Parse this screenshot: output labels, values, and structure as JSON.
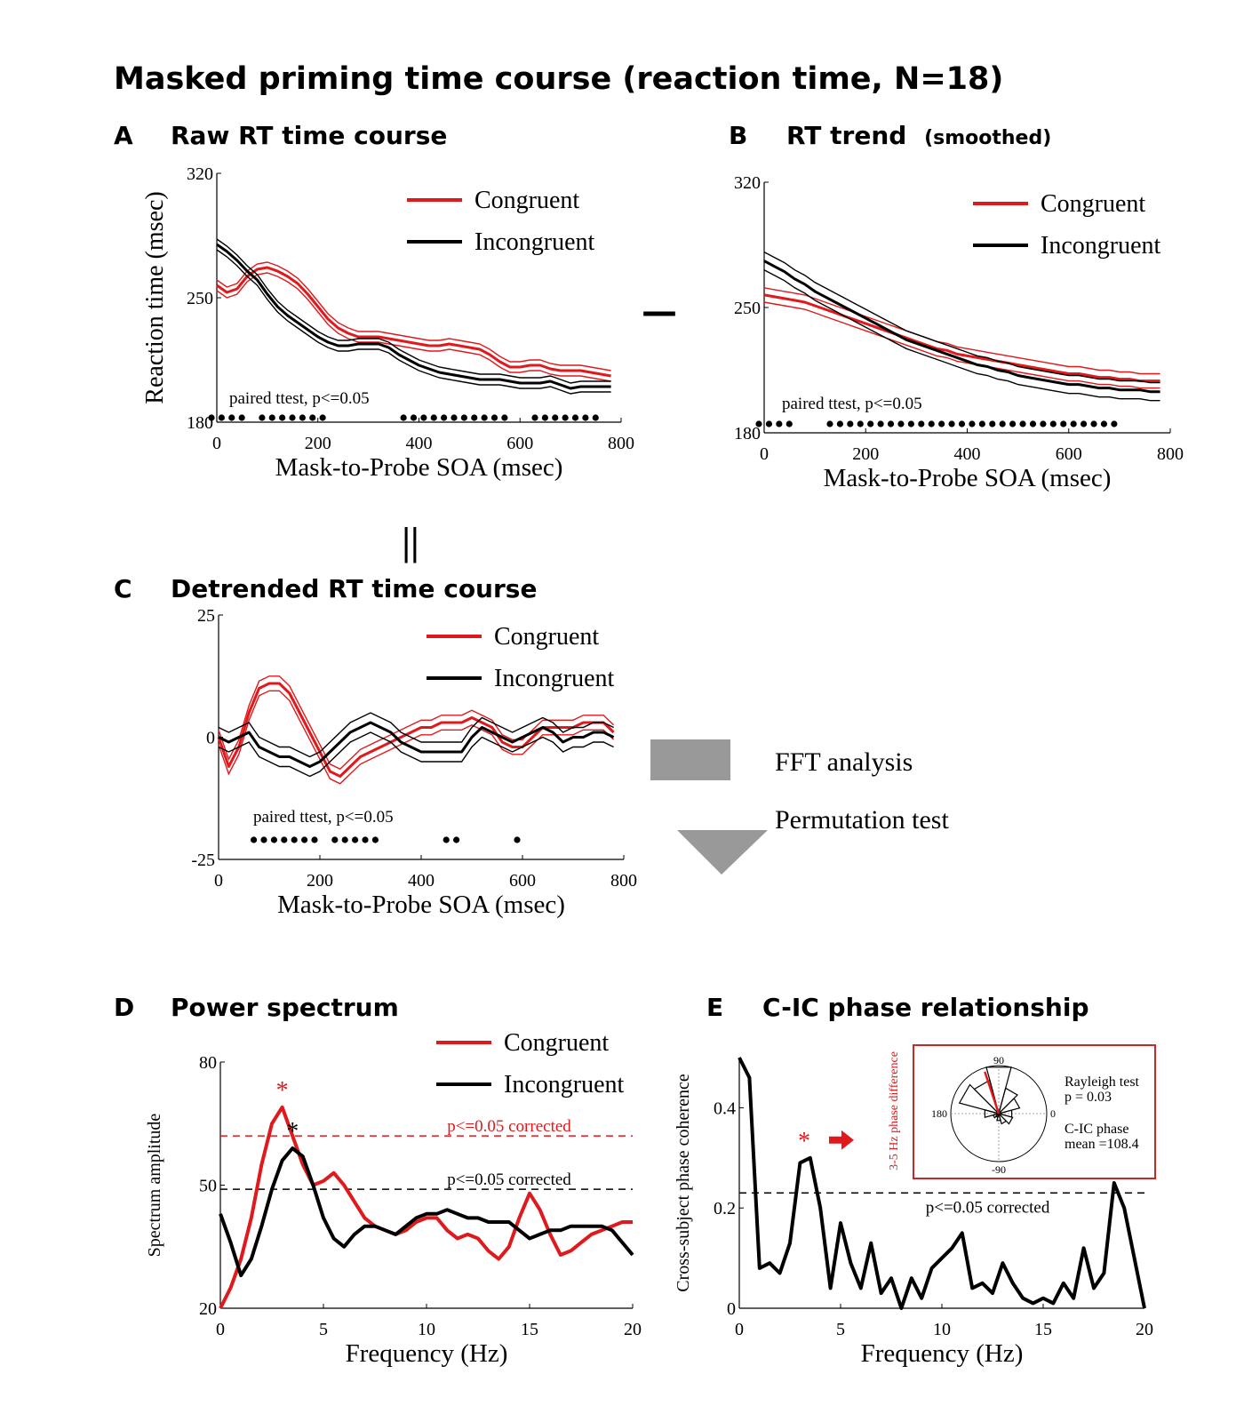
{
  "title": "Masked priming time course (reaction time, N=18)",
  "colors": {
    "congruent": "#e0191c",
    "incongruent": "#000000",
    "arrow": "#999999",
    "inset_border": "#c62828"
  },
  "operators": {
    "minus": "—",
    "equals": "||"
  },
  "fft_labels": {
    "line1": "FFT analysis",
    "line2": "Permutation test"
  },
  "chart_data": [
    {
      "id": "A",
      "panel_letter": "A",
      "title": "Raw RT time course",
      "title_suffix": "",
      "type": "line",
      "xlabel": "Mask-to-Probe SOA (msec)",
      "ylabel": "Reaction time (msec)",
      "xlim": [
        0,
        800
      ],
      "ylim": [
        180,
        320
      ],
      "xticks": [
        0,
        200,
        400,
        600,
        800
      ],
      "yticks": [
        180,
        250,
        320
      ],
      "legend": {
        "position": "top-right",
        "entries": [
          "Congruent",
          "Incongruent"
        ]
      },
      "annotation": "paired ttest, p<=0.05",
      "x": [
        0,
        20,
        40,
        60,
        80,
        100,
        120,
        140,
        160,
        180,
        200,
        220,
        240,
        260,
        280,
        300,
        320,
        340,
        360,
        380,
        400,
        420,
        440,
        460,
        480,
        500,
        520,
        540,
        560,
        580,
        600,
        620,
        640,
        660,
        680,
        700,
        720,
        740,
        760,
        780
      ],
      "series": [
        {
          "name": "Congruent",
          "values": [
            257,
            253,
            255,
            262,
            266,
            267,
            265,
            262,
            258,
            252,
            245,
            238,
            233,
            230,
            228,
            228,
            228,
            227,
            226,
            225,
            224,
            223,
            223,
            224,
            223,
            222,
            221,
            218,
            214,
            211,
            211,
            212,
            212,
            210,
            209,
            209,
            209,
            208,
            207,
            206
          ],
          "sem": 3
        },
        {
          "name": "Incongruent",
          "values": [
            280,
            276,
            271,
            265,
            260,
            252,
            245,
            240,
            236,
            232,
            228,
            225,
            223,
            223,
            224,
            224,
            224,
            222,
            218,
            215,
            212,
            210,
            208,
            207,
            206,
            205,
            204,
            204,
            204,
            203,
            202,
            202,
            202,
            203,
            201,
            199,
            200,
            200,
            200,
            200
          ],
          "sem": 3
        }
      ],
      "significant_x": [
        0,
        20,
        40,
        60,
        100,
        120,
        140,
        160,
        180,
        200,
        220,
        380,
        400,
        420,
        440,
        460,
        480,
        500,
        520,
        540,
        560,
        580,
        640,
        660,
        680,
        700,
        720,
        740,
        760
      ]
    },
    {
      "id": "B",
      "panel_letter": "B",
      "title": "RT trend",
      "title_suffix": "(smoothed)",
      "type": "line",
      "xlabel": "Mask-to-Probe SOA (msec)",
      "ylabel": "",
      "xlim": [
        0,
        800
      ],
      "ylim": [
        180,
        320
      ],
      "xticks": [
        0,
        200,
        400,
        600,
        800
      ],
      "yticks": [
        180,
        250,
        320
      ],
      "legend": {
        "position": "top-right",
        "entries": [
          "Congruent",
          "Incongruent"
        ]
      },
      "annotation": "paired ttest, p<=0.05",
      "x": [
        0,
        20,
        40,
        60,
        80,
        100,
        120,
        140,
        160,
        180,
        200,
        220,
        240,
        260,
        280,
        300,
        320,
        340,
        360,
        380,
        400,
        420,
        440,
        460,
        480,
        500,
        520,
        540,
        560,
        580,
        600,
        620,
        640,
        660,
        680,
        700,
        720,
        740,
        760,
        780
      ],
      "series": [
        {
          "name": "Congruent",
          "values": [
            257,
            256,
            255,
            254,
            253,
            251,
            249,
            247,
            245,
            243,
            241,
            239,
            237,
            235,
            233,
            231,
            229,
            227,
            226,
            224,
            223,
            222,
            221,
            220,
            219,
            218,
            217,
            216,
            215,
            214,
            213,
            213,
            212,
            211,
            211,
            210,
            210,
            209,
            209,
            209
          ],
          "sem": 4
        },
        {
          "name": "Incongruent",
          "values": [
            276,
            273,
            270,
            266,
            263,
            259,
            256,
            253,
            250,
            247,
            244,
            241,
            238,
            235,
            232,
            230,
            228,
            226,
            224,
            222,
            220,
            218,
            217,
            215,
            214,
            212,
            211,
            210,
            209,
            208,
            207,
            207,
            206,
            205,
            205,
            204,
            204,
            204,
            203,
            203
          ],
          "sem": 5
        }
      ],
      "significant_x": [
        0,
        20,
        40,
        60,
        140,
        160,
        180,
        200,
        220,
        240,
        260,
        280,
        300,
        320,
        340,
        360,
        380,
        400,
        420,
        440,
        460,
        480,
        500,
        520,
        540,
        560,
        580,
        600,
        620,
        640,
        660,
        680,
        700
      ]
    },
    {
      "id": "C",
      "panel_letter": "C",
      "title": "Detrended RT time course",
      "title_suffix": "",
      "type": "line",
      "xlabel": "Mask-to-Probe SOA (msec)",
      "ylabel": "",
      "xlim": [
        0,
        800
      ],
      "ylim": [
        -25,
        25
      ],
      "xticks": [
        0,
        200,
        400,
        600,
        800
      ],
      "yticks": [
        -25,
        0,
        25
      ],
      "legend": {
        "position": "top-right",
        "entries": [
          "Congruent",
          "Incongruent"
        ]
      },
      "annotation": "paired ttest, p<=0.05",
      "x": [
        0,
        20,
        40,
        60,
        80,
        100,
        120,
        140,
        160,
        180,
        200,
        220,
        240,
        260,
        280,
        300,
        320,
        340,
        360,
        380,
        400,
        420,
        440,
        460,
        480,
        500,
        520,
        540,
        560,
        580,
        600,
        620,
        640,
        660,
        680,
        700,
        720,
        740,
        760,
        780
      ],
      "series": [
        {
          "name": "Congruent",
          "values": [
            0,
            -6,
            -2,
            5,
            10,
            11,
            11,
            9,
            5,
            1,
            -3,
            -7,
            -8,
            -6,
            -4,
            -3,
            -2,
            -1,
            0,
            1,
            2,
            2,
            3,
            3,
            3,
            4,
            3,
            2,
            -1,
            -2,
            -2,
            0,
            2,
            2,
            2,
            2,
            3,
            3,
            3,
            1
          ],
          "sem": 1.5
        },
        {
          "name": "Incongruent",
          "values": [
            0,
            -1,
            0,
            1,
            -2,
            -3,
            -4,
            -4,
            -5,
            -6,
            -5,
            -3,
            -1,
            1,
            2,
            3,
            2,
            1,
            -1,
            -2,
            -3,
            -3,
            -3,
            -3,
            -3,
            0,
            2,
            1,
            0,
            -1,
            0,
            1,
            2,
            1,
            -1,
            0,
            0,
            1,
            1,
            0
          ],
          "sem": 2
        }
      ],
      "significant_x": [
        80,
        100,
        120,
        140,
        160,
        180,
        200,
        240,
        260,
        280,
        300,
        320,
        460,
        480,
        600
      ]
    },
    {
      "id": "D",
      "panel_letter": "D",
      "title": "Power spectrum",
      "title_suffix": "",
      "type": "line",
      "xlabel": "Frequency (Hz)",
      "ylabel": "Spectrum amplitude",
      "xlim": [
        0,
        20
      ],
      "ylim": [
        20,
        80
      ],
      "xticks": [
        0,
        5,
        10,
        15,
        20
      ],
      "yticks": [
        20,
        50,
        80
      ],
      "legend": {
        "position": "top-right",
        "entries": [
          "Congruent",
          "Incongruent"
        ]
      },
      "x": [
        0,
        0.5,
        1,
        1.5,
        2,
        2.5,
        3,
        3.5,
        4,
        4.5,
        5,
        5.5,
        6,
        6.5,
        7,
        7.5,
        8,
        8.5,
        9,
        9.5,
        10,
        10.5,
        11,
        11.5,
        12,
        12.5,
        13,
        13.5,
        14,
        14.5,
        15,
        15.5,
        16,
        16.5,
        17,
        17.5,
        18,
        18.5,
        19,
        19.5,
        20
      ],
      "series": [
        {
          "name": "Congruent",
          "values": [
            20,
            25,
            32,
            42,
            55,
            65,
            69,
            62,
            55,
            50,
            51,
            53,
            50,
            46,
            42,
            40,
            39,
            38,
            39,
            41,
            42,
            42,
            39,
            37,
            38,
            37,
            34,
            32,
            35,
            42,
            48,
            44,
            38,
            33,
            34,
            36,
            38,
            39,
            40,
            41,
            41
          ]
        },
        {
          "name": "Incongruent",
          "values": [
            43,
            36,
            28,
            32,
            40,
            49,
            56,
            59,
            57,
            50,
            42,
            37,
            35,
            38,
            40,
            40,
            39,
            38,
            40,
            42,
            43,
            43,
            44,
            43,
            42,
            42,
            41,
            41,
            41,
            39,
            37,
            38,
            39,
            39,
            40,
            40,
            40,
            40,
            39,
            36,
            33
          ]
        }
      ],
      "thresholds": [
        {
          "series": "Congruent",
          "value": 62,
          "label": "p<=0.05 corrected"
        },
        {
          "series": "Incongruent",
          "value": 49,
          "label": "p<=0.05 corrected"
        }
      ],
      "peaks": [
        {
          "series": "Congruent",
          "x": 3.0,
          "value": 69,
          "marker": "*"
        },
        {
          "series": "Incongruent",
          "x": 3.5,
          "value": 59,
          "marker": "*"
        }
      ]
    },
    {
      "id": "E",
      "panel_letter": "E",
      "title": "C-IC phase relationship",
      "title_suffix": "",
      "type": "line",
      "xlabel": "Frequency (Hz)",
      "ylabel": "Cross-subject phase coherence",
      "xlim": [
        0,
        20
      ],
      "ylim": [
        0,
        0.5
      ],
      "xticks": [
        0,
        5,
        10,
        15,
        20
      ],
      "yticks": [
        0,
        0.2,
        0.4
      ],
      "x": [
        0,
        0.5,
        1,
        1.5,
        2,
        2.5,
        3,
        3.5,
        4,
        4.5,
        5,
        5.5,
        6,
        6.5,
        7,
        7.5,
        8,
        8.5,
        9,
        9.5,
        10,
        10.5,
        11,
        11.5,
        12,
        12.5,
        13,
        13.5,
        14,
        14.5,
        15,
        15.5,
        16,
        16.5,
        17,
        17.5,
        18,
        18.5,
        19,
        19.5,
        20
      ],
      "series": [
        {
          "name": "",
          "values": [
            0.5,
            0.46,
            0.08,
            0.09,
            0.07,
            0.13,
            0.29,
            0.3,
            0.2,
            0.04,
            0.17,
            0.09,
            0.04,
            0.13,
            0.03,
            0.06,
            0.0,
            0.06,
            0.02,
            0.08,
            0.1,
            0.12,
            0.15,
            0.04,
            0.05,
            0.03,
            0.09,
            0.05,
            0.02,
            0.01,
            0.02,
            0.01,
            0.05,
            0.02,
            0.12,
            0.04,
            0.07,
            0.25,
            0.2,
            0.1,
            0.0
          ]
        }
      ],
      "thresholds": [
        {
          "value": 0.23,
          "label": "p<=0.05 corrected"
        }
      ],
      "peaks": [
        {
          "x": 3.2,
          "value": 0.3,
          "marker": "*"
        }
      ],
      "inset": {
        "type": "polar-histogram",
        "title": "3-5 Hz phase difference",
        "angle_labels": {
          "top": "90",
          "left": "180",
          "right": "0",
          "bottom": "-90"
        },
        "bins_deg": [
          0,
          30,
          60,
          90,
          120,
          150,
          180,
          210,
          240,
          270,
          300,
          330
        ],
        "bin_radii": [
          0.28,
          0.45,
          0.55,
          1.0,
          0.72,
          0.85,
          0.3,
          0.12,
          0.08,
          0.15,
          0.22,
          0.3
        ],
        "mean_direction_deg": 108.4,
        "rayleigh_label": "Rayleigh test",
        "rayleigh_p": "p = 0.03",
        "mean_label": "C-IC phase",
        "mean_text": "mean =108.4"
      }
    }
  ]
}
